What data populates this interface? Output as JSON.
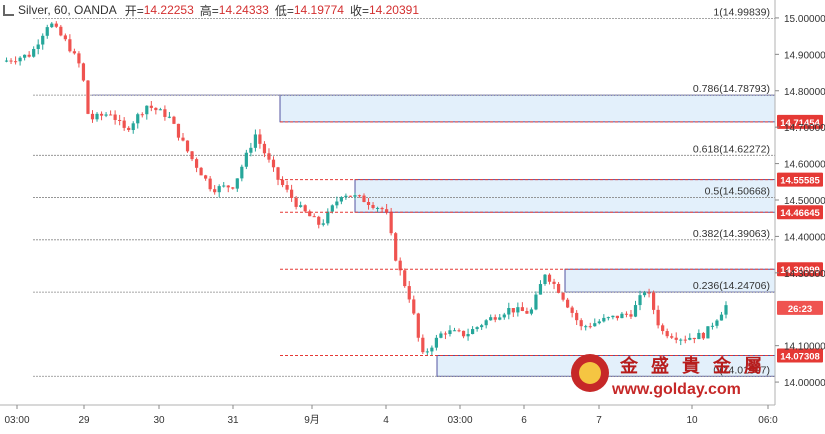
{
  "header": {
    "symbol": "Silver, 60, OANDA",
    "open_label": "开=",
    "open": "14.22253",
    "high_label": "高=",
    "high": "14.24333",
    "low_label": "低=",
    "low": "14.19774",
    "close_label": "收=",
    "close": "14.20391"
  },
  "colors": {
    "up": "#26a69a",
    "down": "#ef5350",
    "zone_fill": "#e3f0fb",
    "zone_border": "#2b2b8a",
    "marker_red": "#e53935",
    "fib_line": "#888888",
    "current": "#e53935"
  },
  "watermark": {
    "chars": [
      "金",
      "盛",
      "貴",
      "金",
      "屬"
    ],
    "url": "www.golday.com"
  },
  "chart_data": {
    "type": "candlestick",
    "ylim": [
      13.97,
      15.03
    ],
    "y_ticks": [
      "15.00000",
      "14.90000",
      "14.80000",
      "14.70000",
      "14.60000",
      "14.50000",
      "14.40000",
      "14.30000",
      "14.10000",
      "14.00000"
    ],
    "y_tick_values": [
      15.0,
      14.9,
      14.8,
      14.7,
      14.6,
      14.5,
      14.4,
      14.3,
      14.1,
      14.0
    ],
    "x_ticks": [
      "03:00",
      "29",
      "30",
      "31",
      "9月",
      "4",
      "03:00",
      "6",
      "7",
      "10",
      "06:0"
    ],
    "fib_levels": [
      {
        "ratio": "1",
        "label": "1(14.99839)",
        "value": 14.99839
      },
      {
        "ratio": "0.786",
        "label": "0.786(14.78793)",
        "value": 14.78793
      },
      {
        "ratio": "0.618",
        "label": "0.618(14.62272)",
        "value": 14.62272
      },
      {
        "ratio": "0.5",
        "label": "0.5(14.50668)",
        "value": 14.50668
      },
      {
        "ratio": "0.382",
        "label": "0.382(14.39063)",
        "value": 14.39063
      },
      {
        "ratio": "0.236",
        "label": "0.236(14.24706)",
        "value": 14.24706
      },
      {
        "ratio": "0",
        "label": "0(14.01597)",
        "value": 14.01597
      }
    ],
    "price_markers": [
      {
        "label": "14.71454",
        "value": 14.71454,
        "kind": "level"
      },
      {
        "label": "14.55585",
        "value": 14.55585,
        "kind": "level"
      },
      {
        "label": "14.46645",
        "value": 14.46645,
        "kind": "level"
      },
      {
        "label": "14.30999",
        "value": 14.30999,
        "kind": "level"
      },
      {
        "label": "14.07308",
        "value": 14.07308,
        "kind": "level"
      },
      {
        "label": "26:23",
        "value": 14.20391,
        "kind": "current"
      }
    ],
    "zones": [
      {
        "top": 14.78793,
        "bottom": 14.71454
      },
      {
        "top": 14.55585,
        "bottom": 14.46645
      },
      {
        "top": 14.30999,
        "bottom": 14.24706
      },
      {
        "top": 14.07308,
        "bottom": 14.01597
      }
    ],
    "close_path": [
      {
        "t": 0,
        "v": 14.88
      },
      {
        "t": 0.04,
        "v": 14.9
      },
      {
        "t": 0.065,
        "v": 14.99
      },
      {
        "t": 0.09,
        "v": 14.93
      },
      {
        "t": 0.11,
        "v": 14.86
      },
      {
        "t": 0.12,
        "v": 14.72
      },
      {
        "t": 0.15,
        "v": 14.74
      },
      {
        "t": 0.17,
        "v": 14.69
      },
      {
        "t": 0.2,
        "v": 14.76
      },
      {
        "t": 0.23,
        "v": 14.73
      },
      {
        "t": 0.26,
        "v": 14.62
      },
      {
        "t": 0.29,
        "v": 14.53
      },
      {
        "t": 0.32,
        "v": 14.54
      },
      {
        "t": 0.35,
        "v": 14.68
      },
      {
        "t": 0.38,
        "v": 14.56
      },
      {
        "t": 0.41,
        "v": 14.48
      },
      {
        "t": 0.44,
        "v": 14.43
      },
      {
        "t": 0.47,
        "v": 14.52
      },
      {
        "t": 0.5,
        "v": 14.5
      },
      {
        "t": 0.53,
        "v": 14.47
      },
      {
        "t": 0.545,
        "v": 14.33
      },
      {
        "t": 0.565,
        "v": 14.22
      },
      {
        "t": 0.58,
        "v": 14.07
      },
      {
        "t": 0.61,
        "v": 14.14
      },
      {
        "t": 0.64,
        "v": 14.13
      },
      {
        "t": 0.67,
        "v": 14.17
      },
      {
        "t": 0.7,
        "v": 14.2
      },
      {
        "t": 0.73,
        "v": 14.19
      },
      {
        "t": 0.75,
        "v": 14.3
      },
      {
        "t": 0.77,
        "v": 14.25
      },
      {
        "t": 0.8,
        "v": 14.15
      },
      {
        "t": 0.83,
        "v": 14.17
      },
      {
        "t": 0.87,
        "v": 14.19
      },
      {
        "t": 0.89,
        "v": 14.26
      },
      {
        "t": 0.91,
        "v": 14.14
      },
      {
        "t": 0.94,
        "v": 14.12
      },
      {
        "t": 0.97,
        "v": 14.13
      },
      {
        "t": 1.0,
        "v": 14.21
      }
    ]
  }
}
